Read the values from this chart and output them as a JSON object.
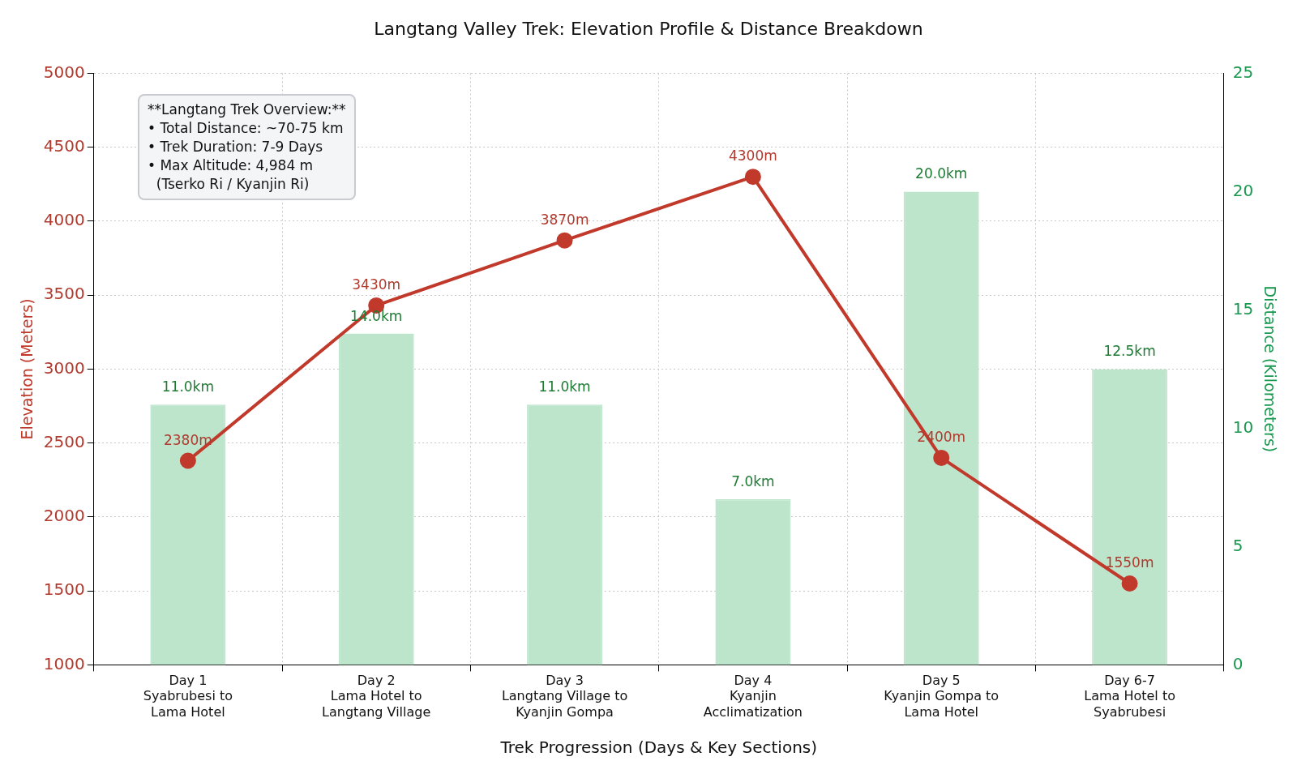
{
  "chart_data": {
    "type": "bar",
    "title": "Langtang Valley Trek: Elevation Profile & Distance Breakdown",
    "xlabel": "Trek Progression (Days & Key Sections)",
    "ylabel": "Elevation (Meters)",
    "y2label": "Distance (Kilometers)",
    "categories": [
      "Day 1\nSyabrubesi to\nLama Hotel",
      "Day 2\nLama Hotel to\nLangtang Village",
      "Day 3\nLangtang Village to\nKyanjin Gompa",
      "Day 4\nKyanjin\nAcclimatization",
      "Day 5\nKyanjin Gompa to\nLama Hotel",
      "Day 6-7\nLama Hotel to\nSyabrubesi"
    ],
    "series": [
      {
        "axis": "y2",
        "color": "#bde5cc",
        "values": [
          11.0,
          14.0,
          11.0,
          7.0,
          20.0,
          12.5
        ],
        "value_labels": [
          "11.0km",
          "14.0km",
          "11.0km",
          "7.0km",
          "20.0km",
          "12.5km"
        ]
      },
      {
        "type": "line",
        "axis": "y",
        "color": "#c0392b",
        "values": [
          2380,
          3430,
          3870,
          4300,
          2400,
          1550
        ],
        "value_labels": [
          "2380m",
          "3430m",
          "3870m",
          "4300m",
          "2400m",
          "1550m"
        ]
      }
    ],
    "ylim": [
      1000,
      5000
    ],
    "yticks": [
      1000,
      1500,
      2000,
      2500,
      3000,
      3500,
      4000,
      4500,
      5000
    ],
    "y2lim": [
      0,
      25
    ],
    "y2ticks": [
      0,
      5,
      10,
      15,
      20,
      25
    ],
    "grid": true,
    "legend": false,
    "marker": "circle",
    "line_style": "solid",
    "annotations": [
      "**Langtang Trek Overview:**\n• Total Distance: ~70-75 km\n• Trek Duration: 7-9 Days\n• Max Altitude: 4,984 m\n  (Tserko Ri / Kyanjin Ri)"
    ]
  }
}
